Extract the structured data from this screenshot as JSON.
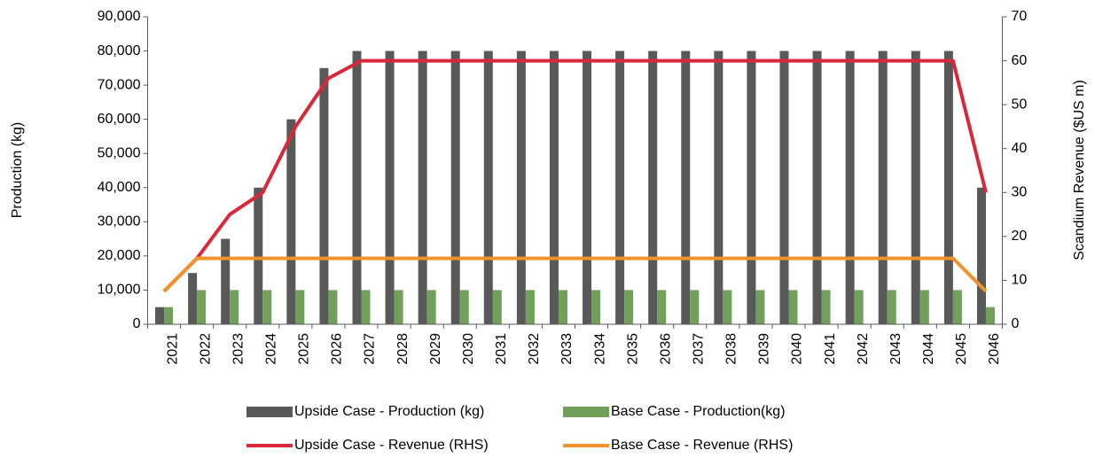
{
  "chart_data": {
    "type": "bar",
    "y_label": "Production (kg)",
    "y2_label": "Scandium Revenue ($US m)",
    "categories": [
      "2021",
      "2022",
      "2023",
      "2024",
      "2025",
      "2026",
      "2027",
      "2028",
      "2029",
      "2030",
      "2031",
      "2032",
      "2033",
      "2034",
      "2035",
      "2036",
      "2037",
      "2038",
      "2039",
      "2040",
      "2041",
      "2042",
      "2043",
      "2044",
      "2045",
      "2046"
    ],
    "series": [
      {
        "name": "Upside Case - Production (kg)",
        "type": "bar",
        "color": "#595959",
        "values": [
          5000,
          15000,
          25000,
          40000,
          60000,
          75000,
          80000,
          80000,
          80000,
          80000,
          80000,
          80000,
          80000,
          80000,
          80000,
          80000,
          80000,
          80000,
          80000,
          80000,
          80000,
          80000,
          80000,
          80000,
          80000,
          40000
        ]
      },
      {
        "name": "Base Case - Production(kg)",
        "type": "bar",
        "color": "#70a05a",
        "values": [
          5000,
          10000,
          10000,
          10000,
          10000,
          10000,
          10000,
          10000,
          10000,
          10000,
          10000,
          10000,
          10000,
          10000,
          10000,
          10000,
          10000,
          10000,
          10000,
          10000,
          10000,
          10000,
          10000,
          10000,
          10000,
          5000
        ]
      },
      {
        "name": "Upside Case - Revenue (RHS)",
        "type": "line",
        "axis": "y2",
        "color": "#d9283a",
        "values": [
          7.5,
          15,
          25,
          30,
          45,
          56,
          60,
          60,
          60,
          60,
          60,
          60,
          60,
          60,
          60,
          60,
          60,
          60,
          60,
          60,
          60,
          60,
          60,
          60,
          60,
          30
        ]
      },
      {
        "name": "Base Case - Revenue (RHS)",
        "type": "line",
        "axis": "y2",
        "color": "#f0932b",
        "values": [
          7.5,
          15,
          15,
          15,
          15,
          15,
          15,
          15,
          15,
          15,
          15,
          15,
          15,
          15,
          15,
          15,
          15,
          15,
          15,
          15,
          15,
          15,
          15,
          15,
          15,
          7.5
        ]
      }
    ],
    "ylim": [
      0,
      90000
    ],
    "yticks": [
      0,
      {
        "value": 10000,
        "label": "10,000"
      },
      {
        "value": 20000,
        "label": "20,000"
      },
      {
        "value": 30000,
        "label": "30,000"
      },
      {
        "value": 40000,
        "label": "40,000"
      },
      {
        "value": 50000,
        "label": "50,000"
      },
      {
        "value": 60000,
        "label": "60,000"
      },
      {
        "value": 70000,
        "label": "70,000"
      },
      {
        "value": 80000,
        "label": "80,000"
      },
      {
        "value": 90000,
        "label": "90,000"
      }
    ],
    "y2lim": [
      0,
      70
    ],
    "y2ticks": [
      0,
      10,
      20,
      30,
      40,
      50,
      60,
      70
    ],
    "grid": false
  }
}
